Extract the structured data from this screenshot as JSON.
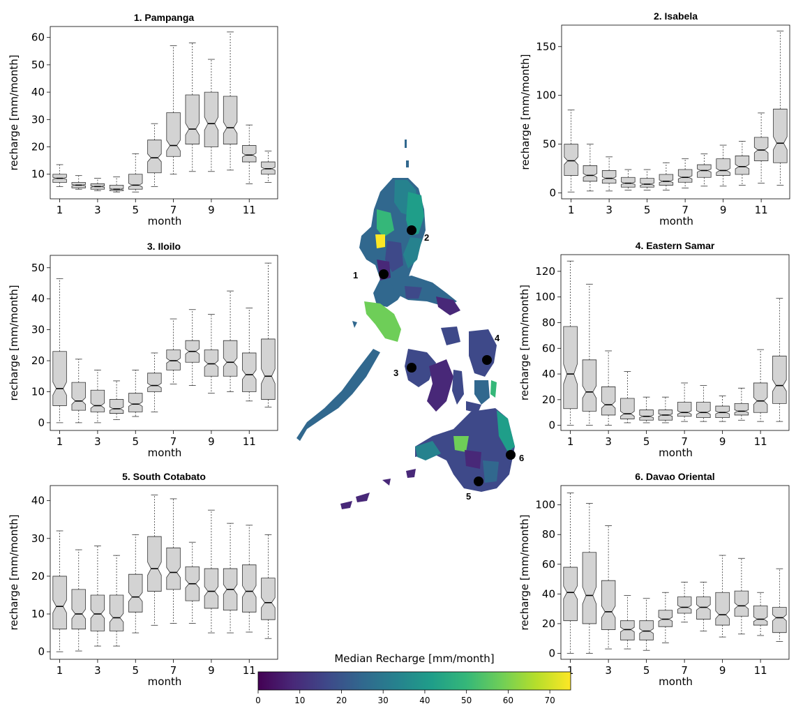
{
  "colors": {
    "box_fill": "#d3d3d3",
    "box_stroke": "#333333",
    "site_marker": "#000000",
    "viridis": [
      "#440154",
      "#482878",
      "#3e4989",
      "#31688e",
      "#26828e",
      "#1f9e89",
      "#35b779",
      "#6ece58",
      "#b5de2b",
      "#fde725"
    ]
  },
  "colorbar": {
    "title": "Median Recharge [mm/month]",
    "ticks": [
      "0",
      "10",
      "20",
      "30",
      "40",
      "50",
      "60",
      "70"
    ],
    "range": [
      0,
      75
    ]
  },
  "map": {
    "sites": [
      "1",
      "2",
      "3",
      "4",
      "5",
      "6"
    ]
  },
  "chart_data": [
    {
      "type": "box",
      "title": "1. Pampanga",
      "xlabel": "month",
      "ylabel": "recharge [mm/month]",
      "categories": [
        "1",
        "2",
        "3",
        "4",
        "5",
        "6",
        "7",
        "8",
        "9",
        "10",
        "11",
        "12"
      ],
      "xticks": [
        "1",
        "3",
        "5",
        "7",
        "9",
        "11"
      ],
      "ylim": [
        1,
        64
      ],
      "yticks": [
        "10",
        "20",
        "30",
        "40",
        "50",
        "60"
      ],
      "stats": [
        {
          "min": 5.5,
          "q1": 7,
          "median": 8.5,
          "q3": 10,
          "max": 13.5
        },
        {
          "min": 4.5,
          "q1": 5,
          "median": 6,
          "q3": 7,
          "max": 9.5
        },
        {
          "min": 4,
          "q1": 4.5,
          "median": 5.5,
          "q3": 6.5,
          "max": 8.5
        },
        {
          "min": 3.5,
          "q1": 4,
          "median": 4.5,
          "q3": 6,
          "max": 9
        },
        {
          "min": 3.5,
          "q1": 4.5,
          "median": 6,
          "q3": 10,
          "max": 17.5
        },
        {
          "min": 5.5,
          "q1": 10.5,
          "median": 16,
          "q3": 22.5,
          "max": 28.5
        },
        {
          "min": 10,
          "q1": 16.5,
          "median": 20.5,
          "q3": 32.5,
          "max": 57
        },
        {
          "min": 11,
          "q1": 21,
          "median": 26.5,
          "q3": 39,
          "max": 58
        },
        {
          "min": 11,
          "q1": 20,
          "median": 28.5,
          "q3": 40,
          "max": 52
        },
        {
          "min": 11.5,
          "q1": 21,
          "median": 27,
          "q3": 38.5,
          "max": 62
        },
        {
          "min": 6.5,
          "q1": 14.5,
          "median": 17,
          "q3": 20.5,
          "max": 28
        },
        {
          "min": 7,
          "q1": 10,
          "median": 12,
          "q3": 14.5,
          "max": 18.5
        }
      ]
    },
    {
      "type": "box",
      "title": "2. Isabela",
      "xlabel": "month",
      "ylabel": "recharge [mm/month]",
      "categories": [
        "1",
        "2",
        "3",
        "4",
        "5",
        "6",
        "7",
        "8",
        "9",
        "10",
        "11",
        "12"
      ],
      "xticks": [
        "1",
        "3",
        "5",
        "7",
        "9",
        "11"
      ],
      "ylim": [
        -6,
        172
      ],
      "yticks": [
        "0",
        "50",
        "100",
        "150"
      ],
      "stats": [
        {
          "min": 1,
          "q1": 18,
          "median": 33,
          "q3": 50,
          "max": 85
        },
        {
          "min": 2,
          "q1": 12,
          "median": 18,
          "q3": 28,
          "max": 50
        },
        {
          "min": 2,
          "q1": 10,
          "median": 15,
          "q3": 23,
          "max": 37
        },
        {
          "min": 3,
          "q1": 6,
          "median": 10,
          "q3": 16,
          "max": 24
        },
        {
          "min": 3,
          "q1": 6,
          "median": 9,
          "q3": 15,
          "max": 24
        },
        {
          "min": 3,
          "q1": 8,
          "median": 12,
          "q3": 19,
          "max": 31
        },
        {
          "min": 5,
          "q1": 11,
          "median": 16,
          "q3": 24,
          "max": 35
        },
        {
          "min": 7,
          "q1": 16,
          "median": 23,
          "q3": 29,
          "max": 40
        },
        {
          "min": 7,
          "q1": 18,
          "median": 23,
          "q3": 35,
          "max": 49
        },
        {
          "min": 8,
          "q1": 19,
          "median": 27,
          "q3": 38,
          "max": 53
        },
        {
          "min": 10,
          "q1": 33,
          "median": 44,
          "q3": 57,
          "max": 82
        },
        {
          "min": 8,
          "q1": 31,
          "median": 51,
          "q3": 86,
          "max": 166
        }
      ]
    },
    {
      "type": "box",
      "title": "3. Iloilo",
      "xlabel": "month",
      "ylabel": "recharge [mm/month]",
      "categories": [
        "1",
        "2",
        "3",
        "4",
        "5",
        "6",
        "7",
        "8",
        "9",
        "10",
        "11",
        "12"
      ],
      "xticks": [
        "1",
        "3",
        "5",
        "7",
        "9",
        "11"
      ],
      "ylim": [
        -2.5,
        54
      ],
      "yticks": [
        "0",
        "10",
        "20",
        "30",
        "40",
        "50"
      ],
      "stats": [
        {
          "min": 0,
          "q1": 5.5,
          "median": 11,
          "q3": 23,
          "max": 46.5
        },
        {
          "min": 0,
          "q1": 4,
          "median": 7,
          "q3": 13,
          "max": 20.5
        },
        {
          "min": 0,
          "q1": 3.5,
          "median": 5.5,
          "q3": 10.5,
          "max": 17
        },
        {
          "min": 1,
          "q1": 3,
          "median": 4.5,
          "q3": 7.5,
          "max": 13.5
        },
        {
          "min": 2,
          "q1": 3.5,
          "median": 6,
          "q3": 9.5,
          "max": 17
        },
        {
          "min": 3.5,
          "q1": 10,
          "median": 12,
          "q3": 16,
          "max": 22.5
        },
        {
          "min": 12.5,
          "q1": 17,
          "median": 20,
          "q3": 23.5,
          "max": 33.5
        },
        {
          "min": 12,
          "q1": 19.5,
          "median": 23,
          "q3": 26.5,
          "max": 36.5
        },
        {
          "min": 9.5,
          "q1": 15,
          "median": 19,
          "q3": 23.5,
          "max": 35
        },
        {
          "min": 10,
          "q1": 15,
          "median": 19.5,
          "q3": 26.5,
          "max": 42.5
        },
        {
          "min": 7,
          "q1": 10,
          "median": 15.5,
          "q3": 22.5,
          "max": 37
        },
        {
          "min": 5,
          "q1": 7.5,
          "median": 15,
          "q3": 27,
          "max": 51.5
        }
      ]
    },
    {
      "type": "box",
      "title": "4. Eastern Samar",
      "xlabel": "month",
      "ylabel": "recharge [mm/month]",
      "categories": [
        "1",
        "2",
        "3",
        "4",
        "5",
        "6",
        "7",
        "8",
        "9",
        "10",
        "11",
        "12"
      ],
      "xticks": [
        "1",
        "3",
        "5",
        "7",
        "9",
        "11"
      ],
      "ylim": [
        -4,
        133
      ],
      "yticks": [
        "0",
        "20",
        "40",
        "60",
        "80",
        "100",
        "120"
      ],
      "stats": [
        {
          "min": 0,
          "q1": 13,
          "median": 40,
          "q3": 77,
          "max": 128
        },
        {
          "min": 0,
          "q1": 11,
          "median": 26,
          "q3": 51,
          "max": 110
        },
        {
          "min": 0,
          "q1": 8,
          "median": 16,
          "q3": 30,
          "max": 58
        },
        {
          "min": 2,
          "q1": 5,
          "median": 9,
          "q3": 21,
          "max": 42
        },
        {
          "min": 2,
          "q1": 4,
          "median": 7,
          "q3": 12,
          "max": 22
        },
        {
          "min": 2,
          "q1": 4,
          "median": 8,
          "q3": 12,
          "max": 22
        },
        {
          "min": 3,
          "q1": 7,
          "median": 10,
          "q3": 18,
          "max": 33
        },
        {
          "min": 3,
          "q1": 6,
          "median": 10,
          "q3": 18,
          "max": 31
        },
        {
          "min": 3,
          "q1": 6,
          "median": 10,
          "q3": 15,
          "max": 23
        },
        {
          "min": 4,
          "q1": 8,
          "median": 11,
          "q3": 17,
          "max": 29
        },
        {
          "min": 3,
          "q1": 10,
          "median": 19,
          "q3": 33,
          "max": 59
        },
        {
          "min": 3,
          "q1": 17,
          "median": 31,
          "q3": 54,
          "max": 99
        }
      ]
    },
    {
      "type": "box",
      "title": "5. South Cotabato",
      "xlabel": "month",
      "ylabel": "recharge [mm/month]",
      "categories": [
        "1",
        "2",
        "3",
        "4",
        "5",
        "6",
        "7",
        "8",
        "9",
        "10",
        "11",
        "12"
      ],
      "xticks": [
        "1",
        "3",
        "5",
        "7",
        "9",
        "11"
      ],
      "ylim": [
        -2,
        44
      ],
      "yticks": [
        "0",
        "10",
        "20",
        "30",
        "40"
      ],
      "stats": [
        {
          "min": 0,
          "q1": 6,
          "median": 12,
          "q3": 20,
          "max": 32
        },
        {
          "min": 0.2,
          "q1": 6,
          "median": 10,
          "q3": 16.5,
          "max": 27
        },
        {
          "min": 1.5,
          "q1": 5.5,
          "median": 10,
          "q3": 15,
          "max": 28
        },
        {
          "min": 1.5,
          "q1": 5.5,
          "median": 9,
          "q3": 15,
          "max": 25.5
        },
        {
          "min": 5,
          "q1": 10.5,
          "median": 14.5,
          "q3": 20.5,
          "max": 31
        },
        {
          "min": 7,
          "q1": 16,
          "median": 22,
          "q3": 30.5,
          "max": 41.5
        },
        {
          "min": 7.5,
          "q1": 16.5,
          "median": 21,
          "q3": 27.5,
          "max": 40.5
        },
        {
          "min": 7.5,
          "q1": 13.5,
          "median": 18,
          "q3": 22.5,
          "max": 29
        },
        {
          "min": 5,
          "q1": 11.5,
          "median": 16,
          "q3": 22,
          "max": 37.5
        },
        {
          "min": 5,
          "q1": 11,
          "median": 16.5,
          "q3": 22,
          "max": 34
        },
        {
          "min": 5.2,
          "q1": 10.5,
          "median": 16,
          "q3": 23,
          "max": 33.5
        },
        {
          "min": 3.5,
          "q1": 8.5,
          "median": 13,
          "q3": 19.5,
          "max": 31
        }
      ]
    },
    {
      "type": "box",
      "title": "6. Davao Oriental",
      "xlabel": "month",
      "ylabel": "recharge [mm/month]",
      "categories": [
        "1",
        "2",
        "3",
        "4",
        "5",
        "6",
        "7",
        "8",
        "9",
        "10",
        "11",
        "12"
      ],
      "xticks": [
        "1",
        "3",
        "5",
        "7",
        "9",
        "11"
      ],
      "ylim": [
        -4,
        113
      ],
      "yticks": [
        "0",
        "20",
        "40",
        "60",
        "80",
        "100"
      ],
      "stats": [
        {
          "min": 0,
          "q1": 22,
          "median": 41,
          "q3": 58,
          "max": 108
        },
        {
          "min": 0,
          "q1": 20,
          "median": 39,
          "q3": 68,
          "max": 101
        },
        {
          "min": 3,
          "q1": 16,
          "median": 28,
          "q3": 49,
          "max": 86
        },
        {
          "min": 3,
          "q1": 9,
          "median": 16,
          "q3": 22,
          "max": 39
        },
        {
          "min": 2,
          "q1": 9,
          "median": 15,
          "q3": 22,
          "max": 37
        },
        {
          "min": 7,
          "q1": 18,
          "median": 23,
          "q3": 29,
          "max": 41
        },
        {
          "min": 21,
          "q1": 27,
          "median": 31,
          "q3": 38,
          "max": 48
        },
        {
          "min": 15,
          "q1": 23,
          "median": 31,
          "q3": 38,
          "max": 48
        },
        {
          "min": 11,
          "q1": 19,
          "median": 26,
          "q3": 41,
          "max": 66
        },
        {
          "min": 13,
          "q1": 25,
          "median": 32,
          "q3": 42,
          "max": 64
        },
        {
          "min": 12,
          "q1": 19,
          "median": 23,
          "q3": 32,
          "max": 41
        },
        {
          "min": 8,
          "q1": 14,
          "median": 24,
          "q3": 31,
          "max": 57
        }
      ]
    }
  ]
}
